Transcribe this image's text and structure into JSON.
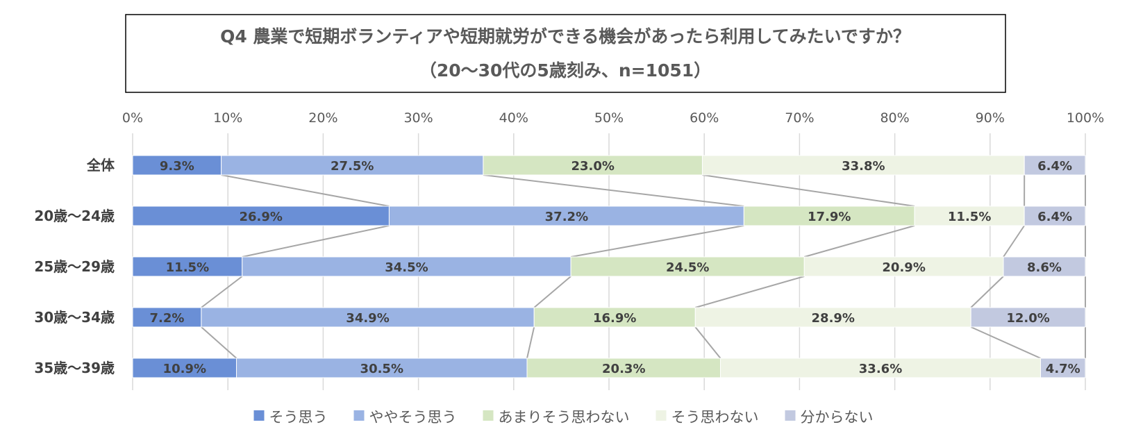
{
  "chart_data": {
    "type": "bar",
    "orientation": "horizontal",
    "stacked": "percent",
    "title": "Q4 農業で短期ボランティアや短期就労ができる機会があったら利用してみたいですか？",
    "subtitle": "（20～30代の5歳刻み、n=1051）",
    "categories": [
      "全体",
      "20歳～24歳",
      "25歳～29歳",
      "30歳～34歳",
      "35歳～39歳"
    ],
    "x_ticks": [
      "0%",
      "10%",
      "20%",
      "30%",
      "40%",
      "50%",
      "60%",
      "70%",
      "80%",
      "90%",
      "100%"
    ],
    "xlim": [
      0,
      100
    ],
    "grid": true,
    "series_lines": true,
    "legend_position": "bottom",
    "series": [
      {
        "name": "そう思う",
        "color": "#6a8fd6",
        "values": [
          9.3,
          26.9,
          11.5,
          7.2,
          10.9
        ],
        "labels": [
          "9.3%",
          "26.9%",
          "11.5%",
          "7.2%",
          "10.9%"
        ]
      },
      {
        "name": "ややそう思う",
        "color": "#9ab3e3",
        "values": [
          27.5,
          37.2,
          34.5,
          34.9,
          30.5
        ],
        "labels": [
          "27.5%",
          "37.2%",
          "34.5%",
          "34.9%",
          "30.5%"
        ]
      },
      {
        "name": "あまりそう思わない",
        "color": "#d5e6c2",
        "values": [
          23.0,
          17.9,
          24.5,
          16.9,
          20.3
        ],
        "labels": [
          "23.0%",
          "17.9%",
          "24.5%",
          "16.9%",
          "20.3%"
        ]
      },
      {
        "name": "そう思わない",
        "color": "#eef3e4",
        "values": [
          33.8,
          11.5,
          20.9,
          28.9,
          33.6
        ],
        "labels": [
          "33.8%",
          "11.5%",
          "20.9%",
          "28.9%",
          "33.6%"
        ]
      },
      {
        "name": "分からない",
        "color": "#c2c9e0",
        "values": [
          6.4,
          6.4,
          8.6,
          12.0,
          4.7
        ],
        "labels": [
          "6.4%",
          "6.4%",
          "8.6%",
          "12.0%",
          "4.7%"
        ]
      }
    ]
  }
}
